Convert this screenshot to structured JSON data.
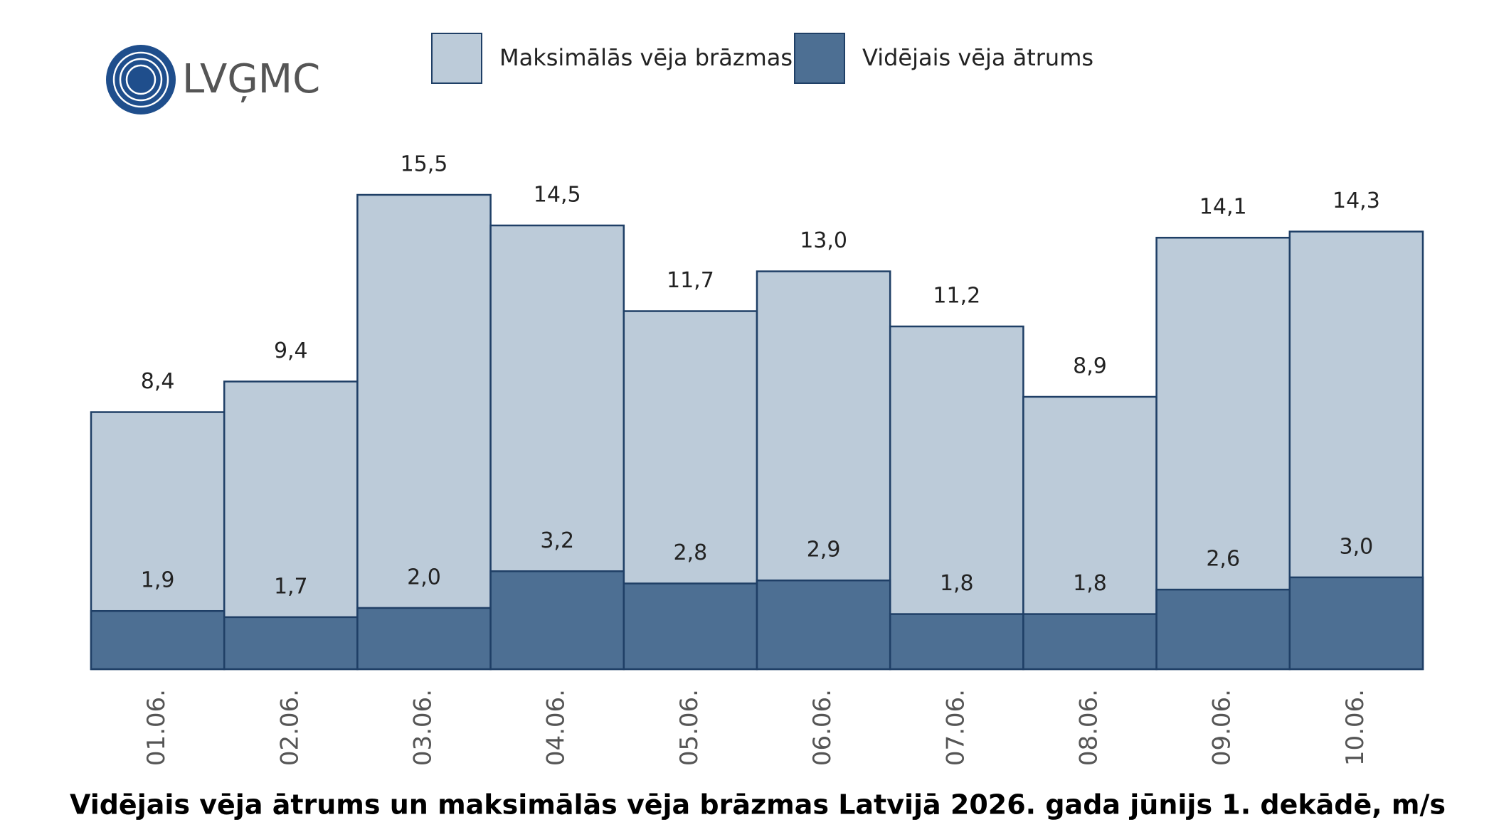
{
  "logo": "LVĢMC",
  "chart_data": {
    "type": "bar",
    "title": "Vidējais vēja ātrums un maksimālās vēja brāzmas Latvijā 2026. gada jūnijs 1. dekādē, m/s",
    "categories": [
      "01.06.",
      "02.06.",
      "03.06.",
      "04.06.",
      "05.06.",
      "06.06.",
      "07.06.",
      "08.06.",
      "09.06.",
      "10.06."
    ],
    "series": [
      {
        "name": "Maksimālās vēja brāzmas",
        "color": "#bccbd9",
        "values": [
          8.4,
          9.4,
          15.5,
          14.5,
          11.7,
          13.0,
          11.2,
          8.9,
          14.1,
          14.3
        ],
        "value_labels": [
          "8,4",
          "9,4",
          "15,5",
          "14,5",
          "11,7",
          "13,0",
          "11,2",
          "8,9",
          "14,1",
          "14,3"
        ]
      },
      {
        "name": "Vidējais vēja ātrums",
        "color": "#4d6f93",
        "values": [
          1.9,
          1.7,
          2.0,
          3.2,
          2.8,
          2.9,
          1.8,
          1.8,
          2.6,
          3.0
        ],
        "value_labels": [
          "1,9",
          "1,7",
          "2,0",
          "3,2",
          "2,8",
          "2,9",
          "1,8",
          "1,8",
          "2,6",
          "3,0"
        ]
      }
    ]
  }
}
